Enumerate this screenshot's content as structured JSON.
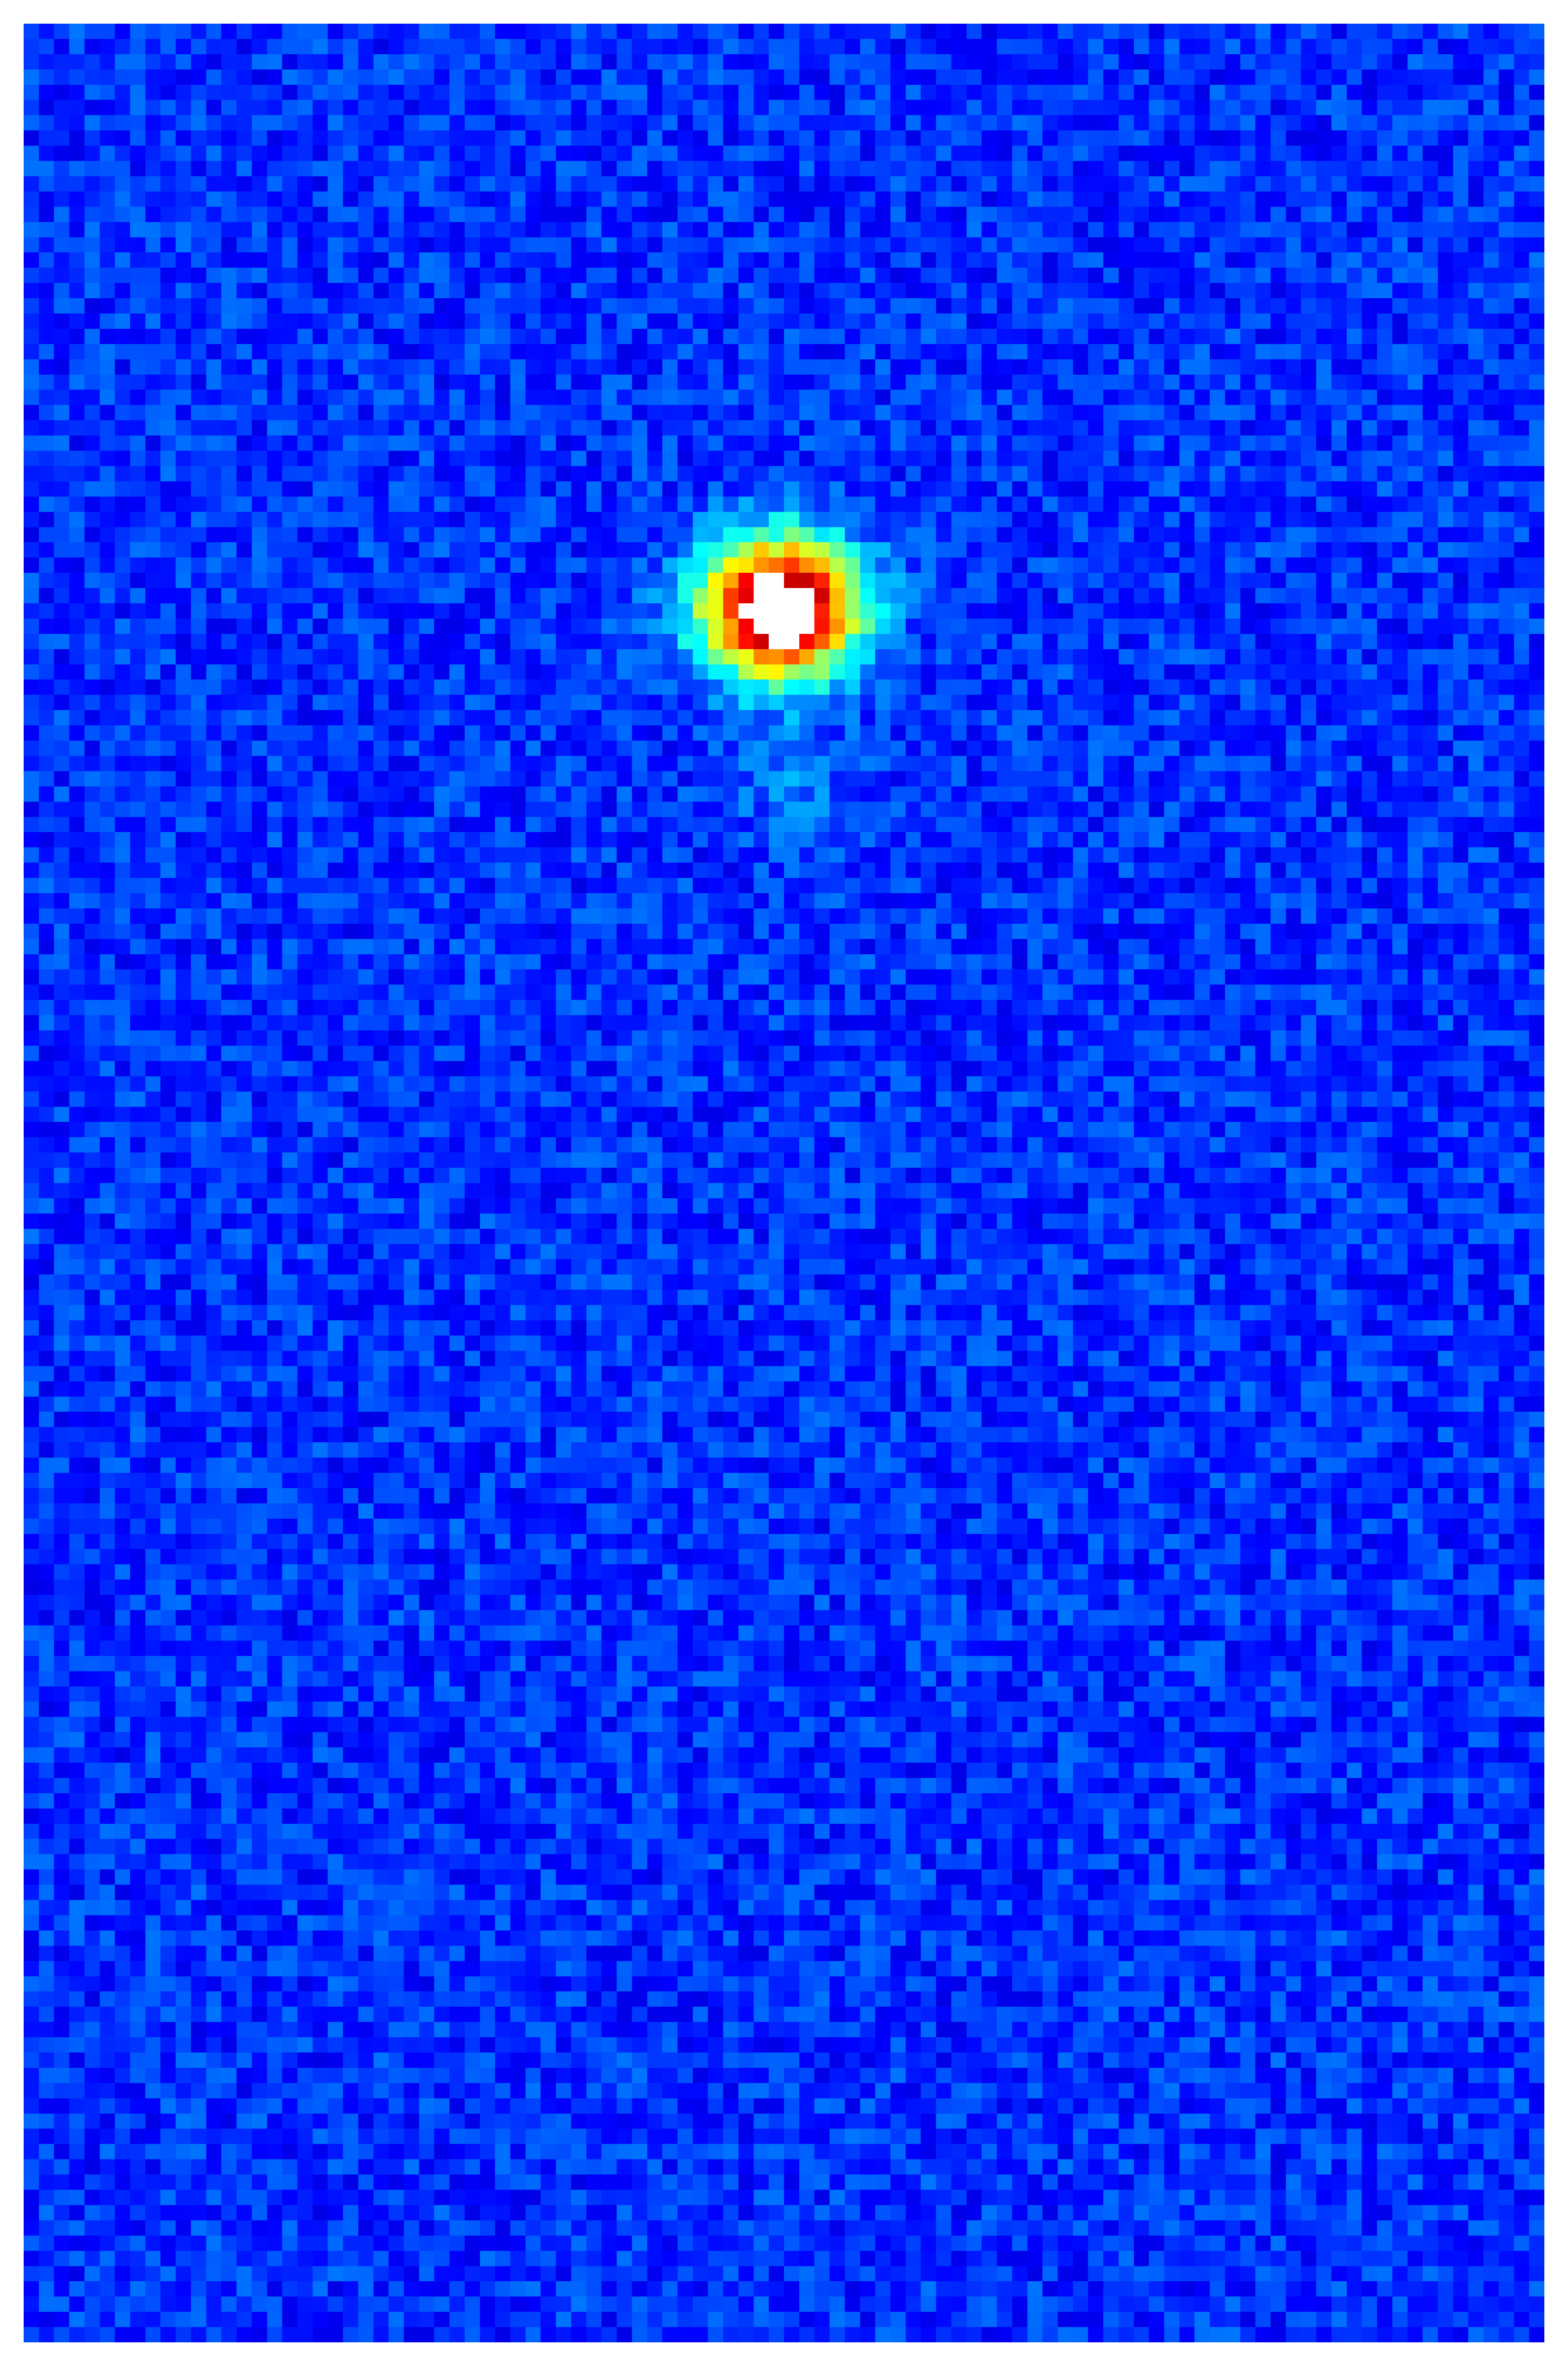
{
  "image": {
    "kind": "false-color intensity map",
    "colormap": "jet",
    "colormap_stops": [
      "#00007f",
      "#0000ff",
      "#00ffff",
      "#ffff00",
      "#ff0000",
      "#ffffff"
    ],
    "background_color": "#00009a",
    "frame_color": "#ffffff",
    "grid_cells": [
      100,
      152
    ],
    "features": [
      {
        "type": "bright-spot",
        "peak": 1.0
      },
      {
        "type": "faint-blob",
        "peak": 0.18
      }
    ]
  }
}
